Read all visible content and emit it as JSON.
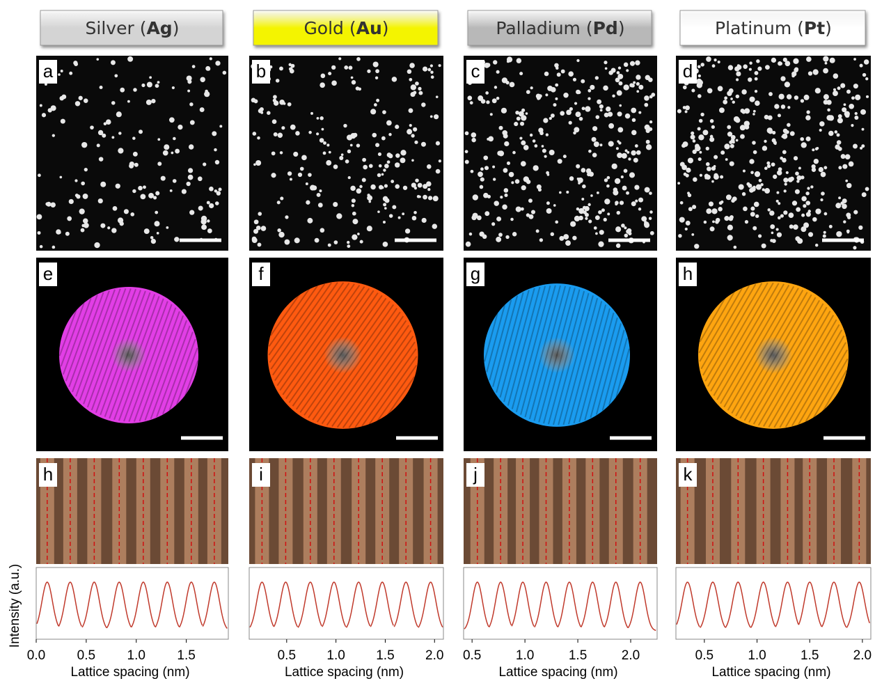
{
  "y_label": "Intensity (a.u.)",
  "columns": [
    {
      "header_parts": [
        "Silver (",
        "Ag",
        ")"
      ],
      "header_color": "#d4d4d4",
      "particle_color": "#e23ee6",
      "panels": [
        "a",
        "e",
        "h"
      ],
      "profile": {
        "type": "line",
        "x_label": "Lattice spacing (nm)",
        "color": "#c0392b",
        "xlim": [
          0,
          1.92
        ],
        "xticks": [
          {
            "value": 0,
            "label": "0.0"
          },
          0.5,
          {
            "value": 1,
            "label": "1.0"
          },
          1.5
        ],
        "peaks": [
          0.11,
          0.34,
          0.58,
          0.83,
          1.07,
          1.31,
          1.55,
          1.78
        ]
      }
    },
    {
      "header_parts": [
        "Gold (",
        "Au",
        ")"
      ],
      "header_color": "#f4f400",
      "particle_color": "#ff5a10",
      "panels": [
        "b",
        "f",
        "i"
      ],
      "profile": {
        "type": "line",
        "x_label": "Lattice spacing (nm)",
        "color": "#c0392b",
        "xlim": [
          0.12,
          2.09
        ],
        "xticks": [
          0.5,
          {
            "value": 1,
            "label": "1.0"
          },
          1.5,
          {
            "value": 2,
            "label": "2.0"
          }
        ],
        "peaks": [
          0.25,
          0.49,
          0.74,
          0.98,
          1.23,
          1.47,
          1.71,
          1.96
        ]
      }
    },
    {
      "header_parts": [
        "Palladium (",
        "Pd",
        ")"
      ],
      "header_color": "#b8b8b8",
      "particle_color": "#1a9cf0",
      "panels": [
        "c",
        "g",
        "j"
      ],
      "profile": {
        "type": "line",
        "x_label": "Lattice spacing (nm)",
        "color": "#c0392b",
        "xlim": [
          0.42,
          2.25
        ],
        "xticks": [
          0.5,
          {
            "value": 1,
            "label": "1.0"
          },
          1.5,
          {
            "value": 2,
            "label": "2.0"
          }
        ],
        "peaks": [
          0.55,
          0.77,
          0.98,
          1.2,
          1.42,
          1.64,
          1.86,
          2.09
        ]
      }
    },
    {
      "header_parts": [
        "Platinum (",
        "Pt",
        ")"
      ],
      "header_color": "#ffffff",
      "particle_color": "#ffa510",
      "panels": [
        "d",
        "h",
        "k"
      ],
      "profile": {
        "type": "line",
        "x_label": "Lattice spacing (nm)",
        "color": "#c0392b",
        "xlim": [
          0.23,
          2.08
        ],
        "xticks": [
          0.5,
          {
            "value": 1,
            "label": "1.0"
          },
          1.5,
          {
            "value": 2,
            "label": "2.0"
          }
        ],
        "peaks": [
          0.34,
          0.58,
          0.82,
          1.06,
          1.29,
          1.5,
          1.73,
          1.97
        ]
      }
    }
  ]
}
